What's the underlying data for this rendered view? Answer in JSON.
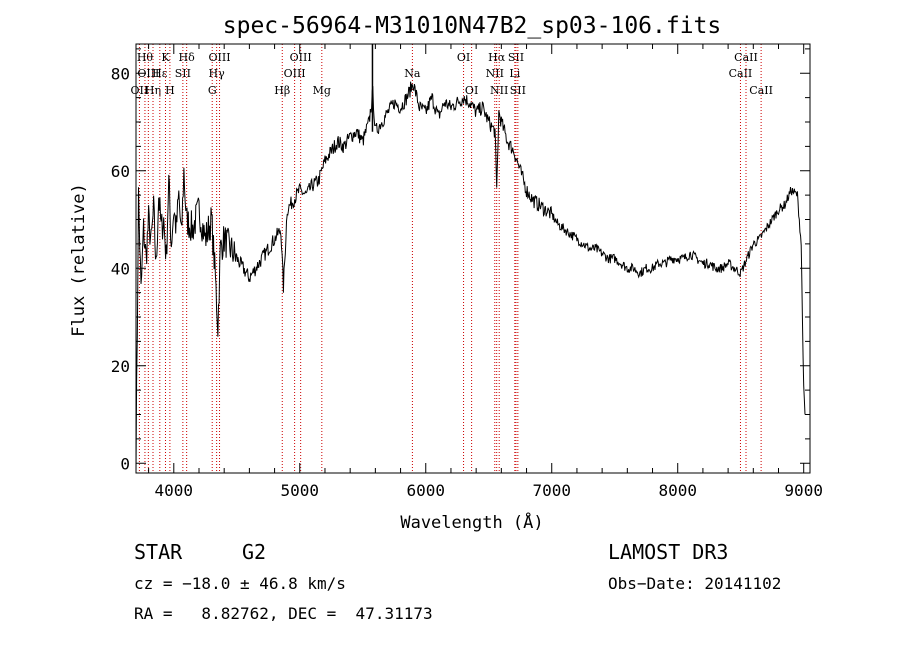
{
  "chart_data": {
    "type": "line",
    "title": "spec-56964-M31010N47B2_sp03-106.fits",
    "xlabel": "Wavelength (Å)",
    "ylabel": "Flux (relative)",
    "xlim": [
      3700,
      9050
    ],
    "ylim": [
      -2,
      86
    ],
    "x_ticks": [
      4000,
      5000,
      6000,
      7000,
      8000,
      9000
    ],
    "y_ticks": [
      0,
      20,
      40,
      60,
      80
    ],
    "series": [
      {
        "name": "flux",
        "x": [
          3700,
          3720,
          3740,
          3760,
          3780,
          3800,
          3820,
          3840,
          3860,
          3880,
          3900,
          3920,
          3940,
          3960,
          3980,
          4000,
          4020,
          4040,
          4060,
          4080,
          4100,
          4150,
          4200,
          4250,
          4300,
          4330,
          4350,
          4370,
          4400,
          4450,
          4500,
          4550,
          4600,
          4650,
          4700,
          4750,
          4800,
          4850,
          4870,
          4900,
          4950,
          5000,
          5050,
          5100,
          5150,
          5200,
          5250,
          5300,
          5350,
          5400,
          5450,
          5500,
          5550,
          5580,
          5600,
          5650,
          5700,
          5750,
          5800,
          5850,
          5900,
          5950,
          6000,
          6050,
          6100,
          6150,
          6200,
          6250,
          6300,
          6350,
          6400,
          6450,
          6500,
          6550,
          6563,
          6580,
          6600,
          6650,
          6700,
          6750,
          6800,
          6850,
          6900,
          6950,
          7000,
          7050,
          7100,
          7150,
          7200,
          7250,
          7300,
          7350,
          7400,
          7450,
          7500,
          7550,
          7600,
          7650,
          7700,
          7750,
          7800,
          7850,
          7900,
          7950,
          8000,
          8050,
          8100,
          8150,
          8200,
          8250,
          8300,
          8350,
          8400,
          8450,
          8500,
          8550,
          8600,
          8650,
          8700,
          8750,
          8800,
          8850,
          8900,
          8950,
          8980,
          9000,
          9010
        ],
        "values": [
          0,
          55,
          35,
          48,
          42,
          50,
          45,
          52,
          40,
          55,
          48,
          50,
          42,
          58,
          45,
          52,
          48,
          55,
          46,
          60,
          50,
          48,
          52,
          46,
          50,
          38,
          28,
          44,
          46,
          44,
          42,
          40,
          38,
          40,
          42,
          44,
          46,
          48,
          36,
          52,
          54,
          56,
          55,
          57,
          58,
          62,
          64,
          66,
          65,
          67,
          68,
          66,
          70,
          76,
          68,
          70,
          72,
          74,
          73,
          75,
          78,
          73,
          72,
          75,
          71,
          74,
          73,
          74,
          75,
          74,
          72,
          73,
          70,
          68,
          56,
          72,
          70,
          66,
          64,
          60,
          56,
          54,
          53,
          52,
          51,
          49,
          48,
          47,
          46,
          45,
          44,
          44,
          43,
          42,
          42,
          41,
          40,
          40,
          39,
          40,
          40,
          41,
          41,
          42,
          42,
          42,
          43,
          42,
          41,
          41,
          40,
          40,
          41,
          40,
          39,
          42,
          45,
          46,
          48,
          50,
          52,
          53,
          56,
          55,
          45,
          15,
          10
        ]
      }
    ],
    "line_markers": [
      {
        "label": "OII",
        "wavelength": 3727,
        "row": 3
      },
      {
        "label": "Hθ",
        "wavelength": 3771,
        "row": 1
      },
      {
        "label": "OIII",
        "wavelength": 3798,
        "row": 2
      },
      {
        "label": "Hη",
        "wavelength": 3835,
        "row": 3
      },
      {
        "label": "Hε",
        "wavelength": 3889,
        "row": 2
      },
      {
        "label": "K",
        "wavelength": 3934,
        "row": 1
      },
      {
        "label": "H",
        "wavelength": 3969,
        "row": 3
      },
      {
        "label": "SII",
        "wavelength": 4072,
        "row": 2
      },
      {
        "label": "Hδ",
        "wavelength": 4102,
        "row": 1
      },
      {
        "label": "G",
        "wavelength": 4305,
        "row": 3
      },
      {
        "label": "Hγ",
        "wavelength": 4340,
        "row": 2
      },
      {
        "label": "OIII",
        "wavelength": 4363,
        "row": 1
      },
      {
        "label": "Hβ",
        "wavelength": 4861,
        "row": 3
      },
      {
        "label": "OIII",
        "wavelength": 4959,
        "row": 2
      },
      {
        "label": "OIII",
        "wavelength": 5007,
        "row": 1
      },
      {
        "label": "Mg",
        "wavelength": 5175,
        "row": 3
      },
      {
        "label": "Na",
        "wavelength": 5894,
        "row": 2
      },
      {
        "label": "OI",
        "wavelength": 6300,
        "row": 1
      },
      {
        "label": "OI",
        "wavelength": 6364,
        "row": 3
      },
      {
        "label": "NII",
        "wavelength": 6548,
        "row": 2
      },
      {
        "label": "Hα",
        "wavelength": 6563,
        "row": 1
      },
      {
        "label": "NII",
        "wavelength": 6583,
        "row": 3
      },
      {
        "label": "Li",
        "wavelength": 6707,
        "row": 2
      },
      {
        "label": "SII",
        "wavelength": 6716,
        "row": 1
      },
      {
        "label": "SII",
        "wavelength": 6731,
        "row": 3
      },
      {
        "label": "CaII",
        "wavelength": 8498,
        "row": 2
      },
      {
        "label": "CaII",
        "wavelength": 8542,
        "row": 1
      },
      {
        "label": "CaII",
        "wavelength": 8662,
        "row": 3
      }
    ]
  },
  "info": {
    "object_class": "STAR",
    "subclass": "G2",
    "redshift_line": "cz = −18.0 ± 46.8 km/s",
    "coords_line": "RA =   8.82762, DEC =  47.31173",
    "survey": "LAMOST DR3",
    "obs_date_line": "Obs−Date: 20141102"
  },
  "colors": {
    "line_marker": "#cc0000",
    "spectrum": "#000000",
    "axes": "#000000"
  }
}
